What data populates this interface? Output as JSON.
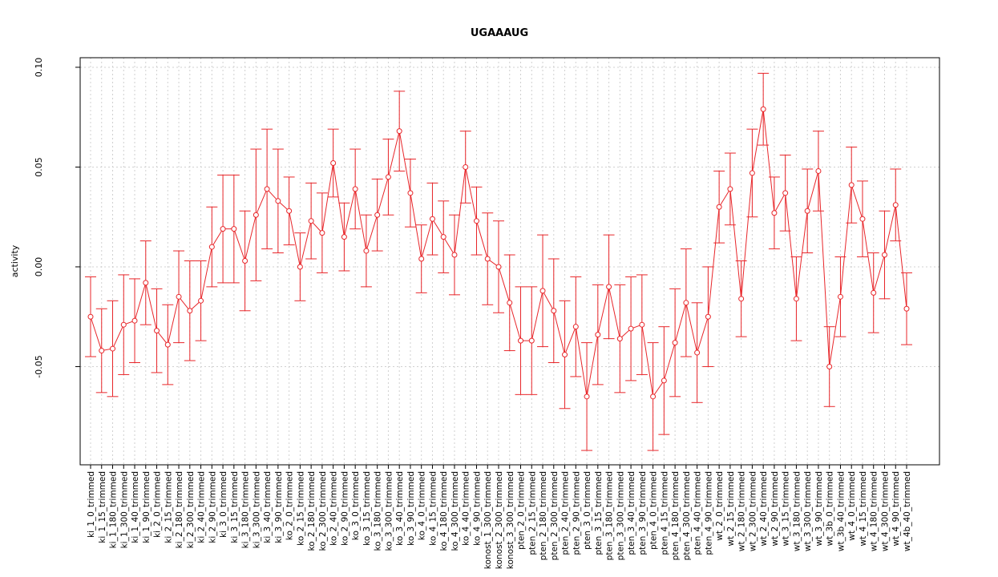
{
  "chart_data": {
    "type": "line",
    "title": "UGAAAUG",
    "ylabel": "activity",
    "categories": [
      "ki_1_0_trimmed",
      "ki_1_15_trimmed",
      "ki_1_180_trimmed",
      "ki_1_300_trimmed",
      "ki_1_40_trimmed",
      "ki_1_90_trimmed",
      "ki_2_0_trimmed",
      "ki_2_15_trimmed",
      "ki_2_180_trimmed",
      "ki_2_300_trimmed",
      "ki_2_40_trimmed",
      "ki_2_90_trimmed",
      "ki_3_0_trimmed",
      "ki_3_15_trimmed",
      "ki_3_180_trimmed",
      "ki_3_300_trimmed",
      "ki_3_40_trimmed",
      "ki_3_90_trimmed",
      "ko_2_0_trimmed",
      "ko_2_15_trimmed",
      "ko_2_180_trimmed",
      "ko_2_300_trimmed",
      "ko_2_40_trimmed",
      "ko_2_90_trimmed",
      "ko_3_0_trimmed",
      "ko_3_15_trimmed",
      "ko_3_180_trimmed",
      "ko_3_300_trimmed",
      "ko_3_40_trimmed",
      "ko_3_90_trimmed",
      "ko_4_0_trimmed",
      "ko_4_15_trimmed",
      "ko_4_180_trimmed",
      "ko_4_300_trimmed",
      "ko_4_40_trimmed",
      "ko_4_90_trimmed",
      "konost_1_300_trimmed",
      "konost_2_300_trimmed",
      "konost_3_300_trimmed",
      "pten_2_0_trimmed",
      "pten_2_15_trimmed",
      "pten_2_180_trimmed",
      "pten_2_300_trimmed",
      "pten_2_40_trimmed",
      "pten_2_90_trimmed",
      "pten_3_0_trimmed",
      "pten_3_15_trimmed",
      "pten_3_180_trimmed",
      "pten_3_300_trimmed",
      "pten_3_40_trimmed",
      "pten_3_90_trimmed",
      "pten_4_0_trimmed",
      "pten_4_15_trimmed",
      "pten_4_180_trimmed",
      "pten_4_300_trimmed",
      "pten_4_40_trimmed",
      "pten_4_90_trimmed",
      "wt_2_0_trimmed",
      "wt_2_15_trimmed",
      "wt_2_180_trimmed",
      "wt_2_300_trimmed",
      "wt_2_40_trimmed",
      "wt_2_90_trimmed",
      "wt_3_15_trimmed",
      "wt_3_180_trimmed",
      "wt_3_300_trimmed",
      "wt_3_90_trimmed",
      "wt_3b_0_trimmed",
      "wt_3b_40_trimmed",
      "wt_4_0_trimmed",
      "wt_4_15_trimmed",
      "wt_4_180_trimmed",
      "wt_4_300_trimmed",
      "wt_4_90_trimmed",
      "wt_4b_40_trimmed"
    ],
    "series": [
      {
        "color": "#e8262a",
        "values": [
          -0.025,
          -0.042,
          -0.041,
          -0.029,
          -0.027,
          -0.008,
          -0.032,
          -0.039,
          -0.015,
          -0.022,
          -0.017,
          0.01,
          0.019,
          0.019,
          0.003,
          0.026,
          0.039,
          0.033,
          0.028,
          0.0,
          0.023,
          0.017,
          0.052,
          0.015,
          0.039,
          0.008,
          0.026,
          0.045,
          0.068,
          0.037,
          0.004,
          0.024,
          0.015,
          0.006,
          0.05,
          0.023,
          0.004,
          0.0,
          -0.018,
          -0.037,
          -0.037,
          -0.012,
          -0.022,
          -0.044,
          -0.03,
          -0.065,
          -0.034,
          -0.01,
          -0.036,
          -0.031,
          -0.029,
          -0.065,
          -0.057,
          -0.038,
          -0.018,
          -0.043,
          -0.025,
          0.03,
          0.039,
          -0.016,
          0.047,
          0.079,
          0.027,
          0.037,
          -0.016,
          0.028,
          0.048,
          -0.05,
          -0.015,
          0.041,
          0.024,
          -0.013,
          0.006,
          0.031,
          -0.021
        ],
        "errors": [
          0.02,
          0.021,
          0.024,
          0.025,
          0.021,
          0.021,
          0.021,
          0.02,
          0.023,
          0.025,
          0.02,
          0.02,
          0.027,
          0.027,
          0.025,
          0.033,
          0.03,
          0.026,
          0.017,
          0.017,
          0.019,
          0.02,
          0.017,
          0.017,
          0.02,
          0.018,
          0.018,
          0.019,
          0.02,
          0.017,
          0.017,
          0.018,
          0.018,
          0.02,
          0.018,
          0.017,
          0.023,
          0.023,
          0.024,
          0.027,
          0.027,
          0.028,
          0.026,
          0.027,
          0.025,
          0.027,
          0.025,
          0.026,
          0.027,
          0.026,
          0.025,
          0.027,
          0.027,
          0.027,
          0.027,
          0.025,
          0.025,
          0.018,
          0.018,
          0.019,
          0.022,
          0.018,
          0.018,
          0.019,
          0.021,
          0.021,
          0.02,
          0.02,
          0.02,
          0.019,
          0.019,
          0.02,
          0.022,
          0.018,
          0.018
        ]
      }
    ],
    "ylim": [
      -0.0992,
      0.1048
    ],
    "yticks": [
      -0.05,
      {
        "value": 0,
        "label": "0.00"
      },
      0.05,
      {
        "value": 0.1,
        "label": "0.10"
      }
    ],
    "grid": true
  }
}
